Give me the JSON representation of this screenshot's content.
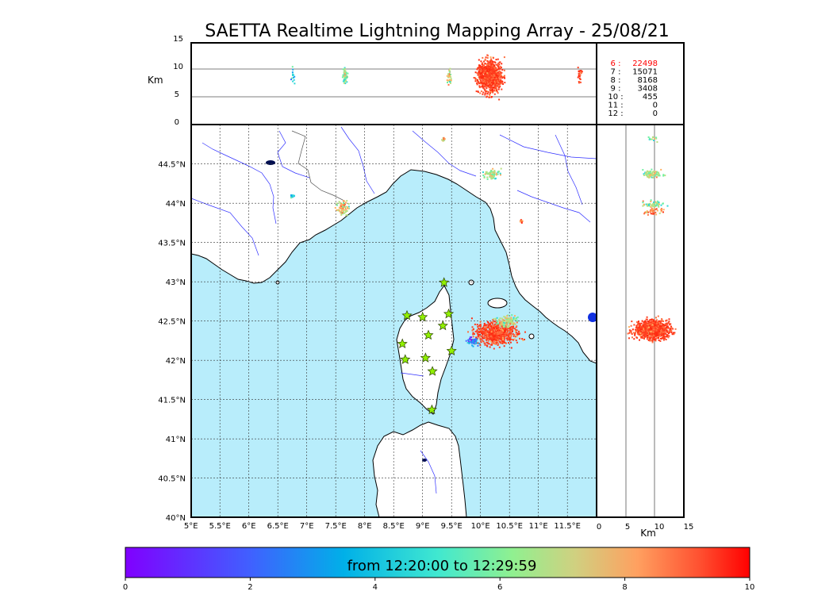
{
  "title": "SAETTA Realtime Lightning Mapping Array - 25/08/21",
  "top_panel": {
    "ylabel": "Km",
    "yticks": [
      "15",
      "10",
      "5",
      "0"
    ]
  },
  "side_panel": {
    "xlabel": "Km",
    "xticks": [
      "0",
      "5",
      "10",
      "15"
    ]
  },
  "station_counts": [
    {
      "label": "6 :",
      "value": "22498",
      "color": "#ff0000"
    },
    {
      "label": "7 :",
      "value": "15071",
      "color": "#000000"
    },
    {
      "label": "8 :",
      "value": "8168",
      "color": "#000000"
    },
    {
      "label": "9 :",
      "value": "3408",
      "color": "#000000"
    },
    {
      "label": "10 :",
      "value": "455",
      "color": "#000000"
    },
    {
      "label": "11 :",
      "value": "0",
      "color": "#000000"
    },
    {
      "label": "12 :",
      "value": "0",
      "color": "#000000"
    }
  ],
  "map": {
    "lon_ticks": [
      "5°E",
      "5.5°E",
      "6°E",
      "6.5°E",
      "7°E",
      "7.5°E",
      "8°E",
      "8.5°E",
      "9°E",
      "9.5°E",
      "10°E",
      "10.5°E",
      "11°E",
      "11.5°E"
    ],
    "lat_ticks": [
      "44.5°N",
      "44°N",
      "43.5°N",
      "43°N",
      "42.5°N",
      "42°N",
      "41.5°N",
      "41°N",
      "40.5°N",
      "40°N"
    ],
    "lon_range": [
      5.0,
      12.0
    ],
    "lat_range": [
      40.0,
      45.0
    ],
    "sea_color": "#b8edfb",
    "land_color": "#ffffff",
    "station_color": "#90f000"
  },
  "colorbar": {
    "label": "from 12:20:00 to 12:29:59",
    "ticks": [
      "0",
      "2",
      "4",
      "6",
      "8",
      "10"
    ],
    "range": [
      0,
      10
    ]
  }
}
